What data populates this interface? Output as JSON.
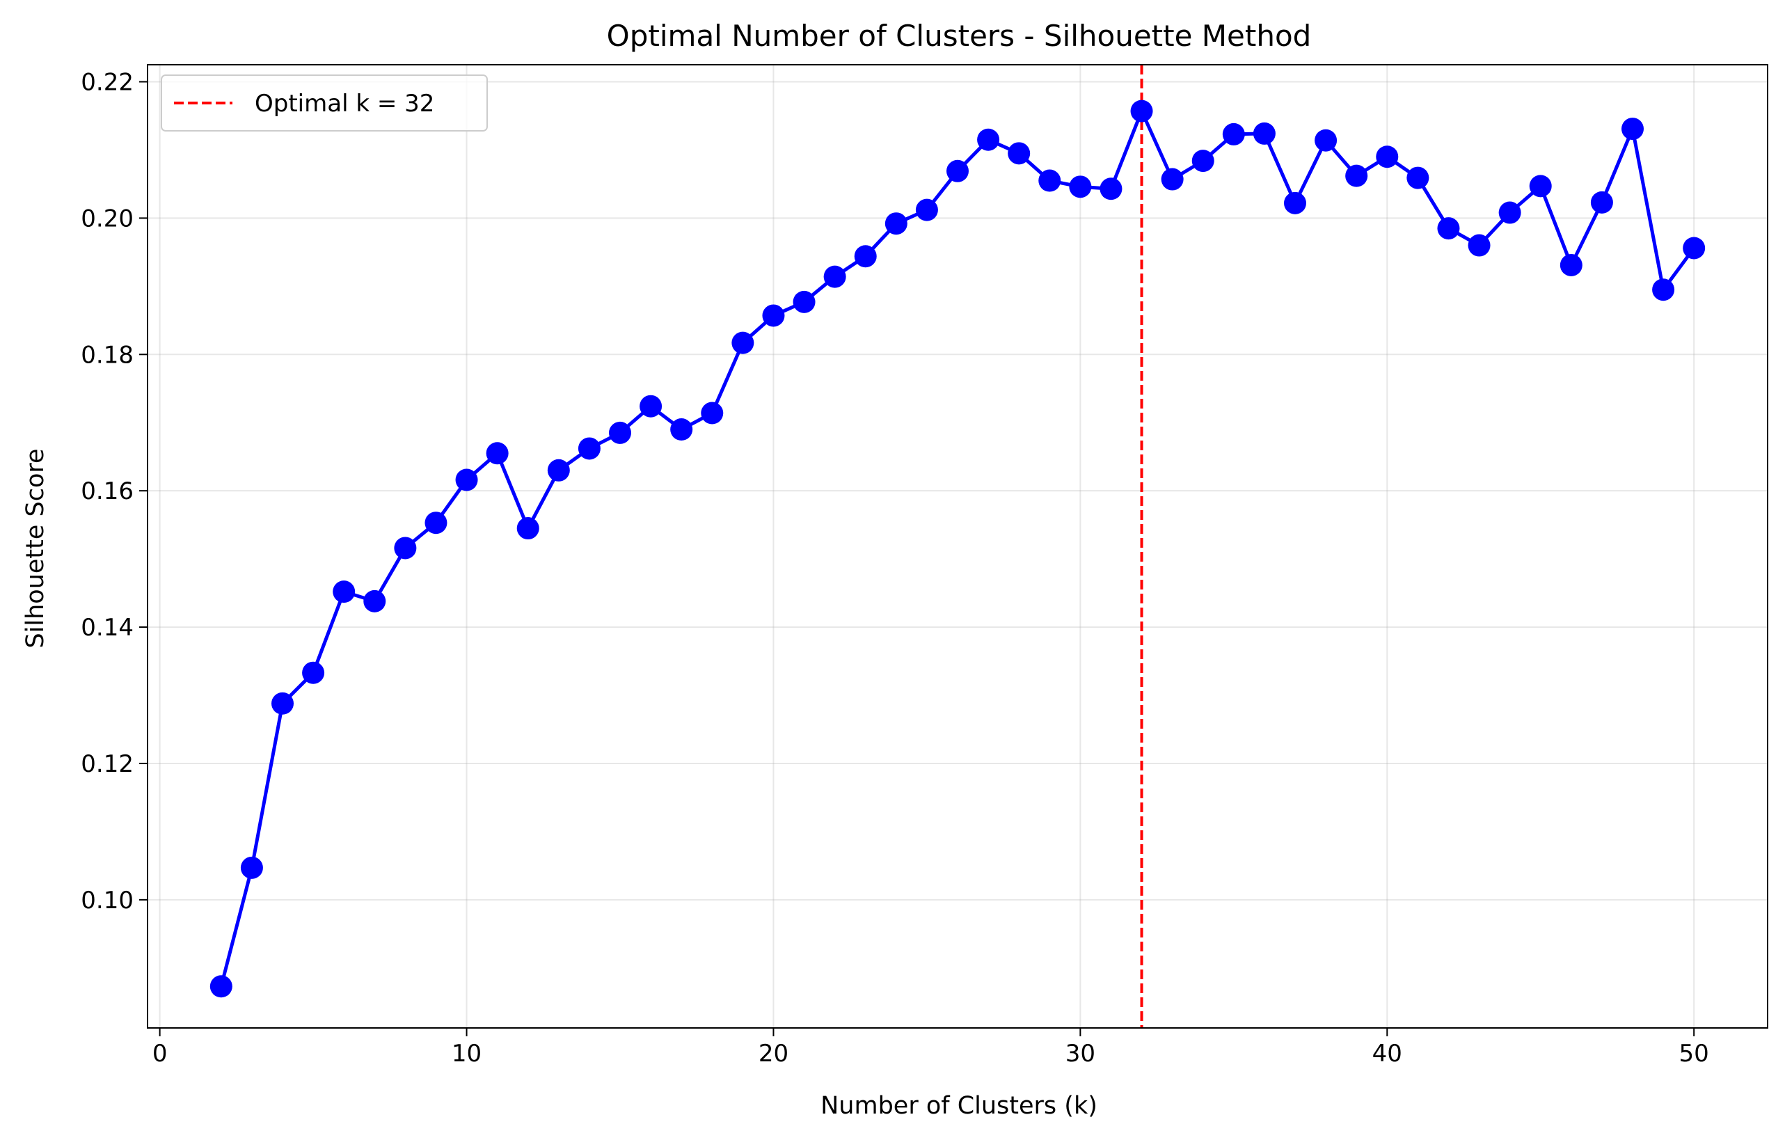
{
  "chart_data": {
    "type": "line",
    "title": "Optimal Number of Clusters - Silhouette Method",
    "xlabel": "Number of Clusters (k)",
    "ylabel": "Silhouette Score",
    "xlim": [
      -0.4,
      52.4
    ],
    "ylim": [
      0.0812,
      0.2225
    ],
    "xticks": [
      0,
      10,
      20,
      30,
      40,
      50
    ],
    "yticks": [
      0.1,
      0.12,
      0.14,
      0.16,
      0.18,
      0.2,
      0.22
    ],
    "xtick_labels": [
      "0",
      "10",
      "20",
      "30",
      "40",
      "50"
    ],
    "ytick_labels": [
      "0.10",
      "0.12",
      "0.14",
      "0.16",
      "0.18",
      "0.20",
      "0.22"
    ],
    "grid": true,
    "legend_position": "top-left",
    "series": [
      {
        "color": "#0000ff",
        "marker": "circle",
        "x": [
          2,
          3,
          4,
          5,
          6,
          7,
          8,
          9,
          10,
          11,
          12,
          13,
          14,
          15,
          16,
          17,
          18,
          19,
          20,
          21,
          22,
          23,
          24,
          25,
          26,
          27,
          28,
          29,
          30,
          31,
          32,
          33,
          34,
          35,
          36,
          37,
          38,
          39,
          40,
          41,
          42,
          43,
          44,
          45,
          46,
          47,
          48,
          49,
          50
        ],
        "values": [
          0.0873,
          0.1047,
          0.1288,
          0.1333,
          0.1452,
          0.1438,
          0.1516,
          0.1553,
          0.1616,
          0.1655,
          0.1545,
          0.163,
          0.1662,
          0.1685,
          0.1724,
          0.169,
          0.1714,
          0.1817,
          0.1857,
          0.1877,
          0.1914,
          0.1944,
          0.1992,
          0.2012,
          0.2069,
          0.2115,
          0.2095,
          0.2055,
          0.2046,
          0.2043,
          0.2157,
          0.2057,
          0.2084,
          0.2123,
          0.2124,
          0.2022,
          0.2114,
          0.2062,
          0.209,
          0.2059,
          0.1985,
          0.196,
          0.2008,
          0.2047,
          0.1931,
          0.2023,
          0.2131,
          0.1895,
          0.1956
        ]
      }
    ],
    "reference_lines": [
      {
        "orientation": "vertical",
        "x": 32,
        "color": "#ff0000",
        "style": "dashed",
        "label": "Optimal k = 32"
      }
    ]
  }
}
